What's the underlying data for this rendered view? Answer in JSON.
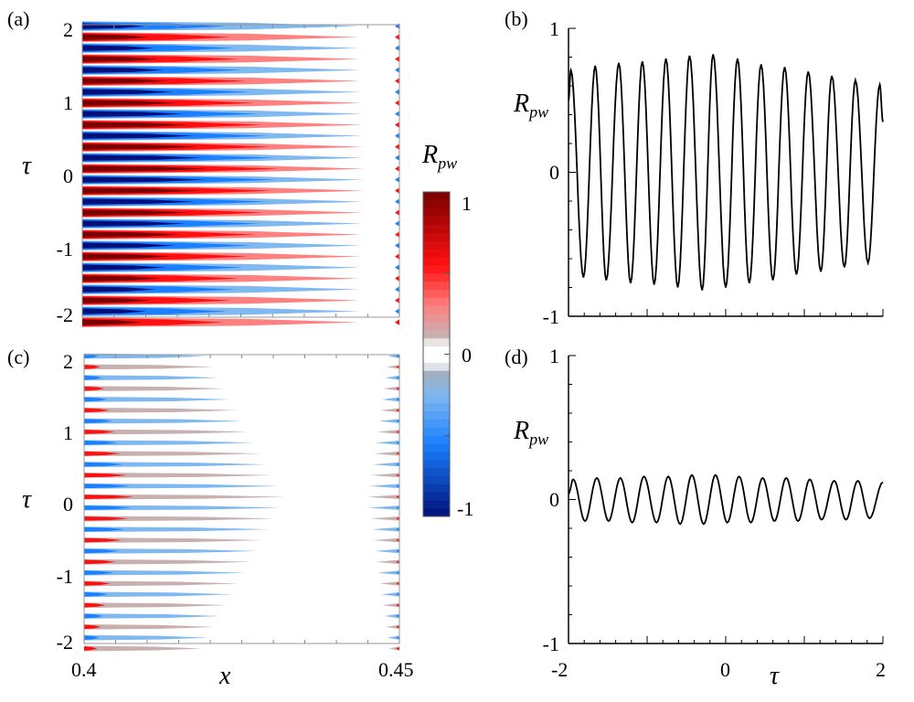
{
  "chart_data": [
    {
      "panel": "(a)",
      "type": "heatmap",
      "title": "",
      "xlabel": "",
      "ylabel": "τ",
      "xlim": [
        0.4,
        0.45
      ],
      "ylim": [
        -2,
        2
      ],
      "ytick_labels": [
        "2",
        "1",
        "0",
        "-1",
        "-2"
      ],
      "stripe_period_tau": 0.3,
      "variable": "R_pw"
    },
    {
      "panel": "(b)",
      "type": "line",
      "ylabel": "R",
      "ylabel_sub": "pw",
      "xlim": [
        -2,
        2
      ],
      "ylim": [
        -1,
        1
      ],
      "ytick_labels": [
        "1",
        "0",
        "-1"
      ],
      "series": [
        {
          "name": "R_pw",
          "tau": [
            -2,
            -1.97,
            -1.81,
            -1.66,
            -1.52,
            -1.36,
            -1.21,
            -1.06,
            -0.91,
            -0.76,
            -0.61,
            -0.46,
            -0.3,
            -0.16,
            0,
            0.15,
            0.3,
            0.45,
            0.6,
            0.75,
            0.9,
            1.05,
            1.21,
            1.35,
            1.51,
            1.65,
            1.81,
            1.96,
            2
          ],
          "value": [
            0.5,
            0.71,
            -0.73,
            0.74,
            -0.75,
            0.76,
            -0.77,
            0.77,
            -0.78,
            0.79,
            -0.8,
            0.81,
            -0.82,
            0.82,
            -0.8,
            0.79,
            -0.77,
            0.75,
            -0.75,
            0.73,
            -0.71,
            0.7,
            -0.69,
            0.67,
            -0.66,
            0.64,
            -0.63,
            0.61,
            0.35
          ]
        }
      ]
    },
    {
      "panel": "(c)",
      "type": "heatmap",
      "xlabel": "x",
      "ylabel": "τ",
      "xlim": [
        0.4,
        0.45
      ],
      "ylim": [
        -2,
        2
      ],
      "xtick_labels": [
        "0.4",
        "0.45"
      ],
      "ytick_labels": [
        "2",
        "1",
        "0",
        "-1",
        "-2"
      ],
      "stripe_period_tau": 0.3
    },
    {
      "panel": "(d)",
      "type": "line",
      "xlabel": "τ",
      "ylabel": "R",
      "ylabel_sub": "pw",
      "xlim": [
        -2,
        2
      ],
      "ylim": [
        -1,
        1
      ],
      "xtick_labels": [
        "-2",
        "0",
        "2"
      ],
      "ytick_labels": [
        "1",
        "0",
        "-1"
      ],
      "series": [
        {
          "name": "R_pw",
          "tau": [
            -2,
            -1.94,
            -1.79,
            -1.64,
            -1.49,
            -1.34,
            -1.19,
            -1.04,
            -0.88,
            -0.73,
            -0.58,
            -0.43,
            -0.28,
            -0.13,
            0.02,
            0.17,
            0.32,
            0.47,
            0.62,
            0.77,
            0.92,
            1.07,
            1.22,
            1.38,
            1.53,
            1.68,
            1.83,
            2
          ],
          "value": [
            0.04,
            0.14,
            -0.15,
            0.15,
            -0.15,
            0.15,
            -0.16,
            0.16,
            -0.16,
            0.16,
            -0.17,
            0.17,
            -0.17,
            0.17,
            -0.16,
            0.16,
            -0.16,
            0.15,
            -0.15,
            0.15,
            -0.15,
            0.14,
            -0.14,
            0.13,
            -0.14,
            0.13,
            -0.13,
            0.12
          ]
        }
      ]
    }
  ],
  "colorbar": {
    "label": "R",
    "label_sub": "pw",
    "tick_labels": [
      "1",
      "0",
      "-1"
    ],
    "range": [
      -1,
      1
    ],
    "colors": {
      "red_dark": "#7a0000",
      "red": "#ff1010",
      "red_light": "#ff8080",
      "gray_pos": "#c8b0b0",
      "gray_neg": "#a0b0c0",
      "blue_light": "#80b8f0",
      "blue": "#1a80ff",
      "blue_dark": "#00107a"
    }
  }
}
